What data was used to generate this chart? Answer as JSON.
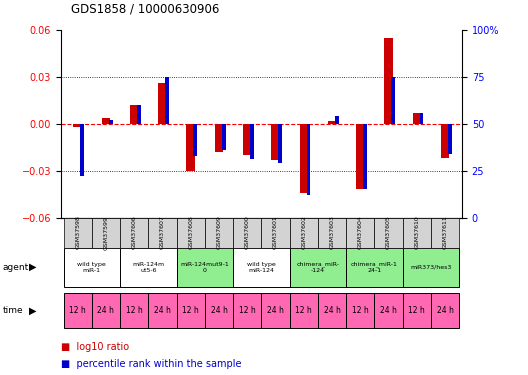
{
  "title": "GDS1858 / 10000630906",
  "samples": [
    "GSM37598",
    "GSM37599",
    "GSM37606",
    "GSM37607",
    "GSM37608",
    "GSM37609",
    "GSM37600",
    "GSM37601",
    "GSM37602",
    "GSM37603",
    "GSM37604",
    "GSM37605",
    "GSM37610",
    "GSM37611"
  ],
  "log10_ratio": [
    -0.002,
    0.004,
    0.012,
    0.026,
    -0.03,
    -0.018,
    -0.02,
    -0.023,
    -0.044,
    0.002,
    -0.042,
    0.055,
    0.007,
    -0.022
  ],
  "percentile_rank": [
    22,
    52,
    60,
    75,
    33,
    36,
    31,
    29,
    12,
    54,
    15,
    75,
    56,
    34
  ],
  "ylim_left": [
    -0.06,
    0.06
  ],
  "ylim_right": [
    0,
    100
  ],
  "yticks_left": [
    -0.06,
    -0.03,
    0.0,
    0.03,
    0.06
  ],
  "yticks_right": [
    0,
    25,
    50,
    75,
    100
  ],
  "agent_groups": [
    {
      "label": "wild type\nmiR-1",
      "start": 0,
      "end": 1,
      "color": "#ffffff"
    },
    {
      "label": "miR-124m\nut5-6",
      "start": 2,
      "end": 3,
      "color": "#ffffff"
    },
    {
      "label": "miR-124mut9-1\n0",
      "start": 4,
      "end": 5,
      "color": "#90ee90"
    },
    {
      "label": "wild type\nmiR-124",
      "start": 6,
      "end": 7,
      "color": "#ffffff"
    },
    {
      "label": "chimera_miR-\n-124",
      "start": 8,
      "end": 9,
      "color": "#90ee90"
    },
    {
      "label": "chimera_miR-1\n24-1",
      "start": 10,
      "end": 11,
      "color": "#90ee90"
    },
    {
      "label": "miR373/hes3",
      "start": 12,
      "end": 13,
      "color": "#90ee90"
    }
  ],
  "time_labels": [
    "12 h",
    "24 h",
    "12 h",
    "24 h",
    "12 h",
    "24 h",
    "12 h",
    "24 h",
    "12 h",
    "24 h",
    "12 h",
    "24 h",
    "12 h",
    "24 h"
  ],
  "time_color": "#ff69b4",
  "bar_width": 0.3,
  "red_color": "#cc0000",
  "blue_color": "#0000cc",
  "sample_bg_color": "#d3d3d3"
}
